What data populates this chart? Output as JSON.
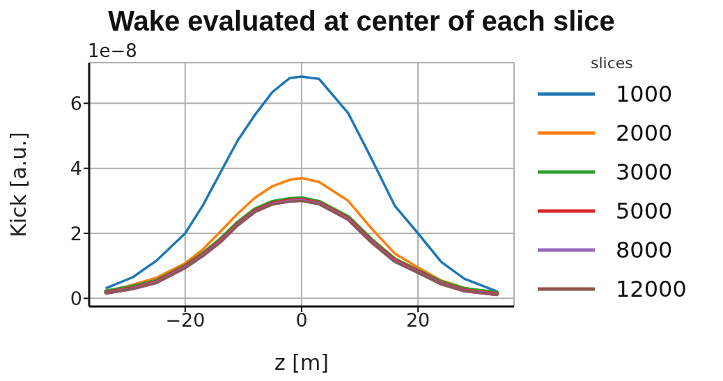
{
  "chart_data": {
    "type": "line",
    "title": "Wake evaluated at center of each slice",
    "xlabel": "z [m]",
    "ylabel": "Kick [a.u.]",
    "legend_title": "slices",
    "annotations": [
      "1e−8"
    ],
    "x": [
      -33.5,
      -29,
      -25,
      -20,
      -17,
      -14,
      -11,
      -8,
      -5,
      -2,
      0,
      3,
      8,
      12,
      16,
      20,
      24,
      28,
      33.5
    ],
    "series": [
      {
        "name": "1000",
        "color": "#1f77b4",
        "values": [
          0.32,
          0.65,
          1.15,
          2.0,
          2.85,
          3.85,
          4.85,
          5.65,
          6.35,
          6.78,
          6.82,
          6.75,
          5.7,
          4.3,
          2.85,
          2.0,
          1.12,
          0.6,
          0.22
        ]
      },
      {
        "name": "2000",
        "color": "#ff7f0e",
        "values": [
          0.2,
          0.42,
          0.63,
          1.08,
          1.5,
          2.05,
          2.6,
          3.1,
          3.45,
          3.65,
          3.7,
          3.58,
          3.0,
          2.15,
          1.38,
          0.95,
          0.55,
          0.32,
          0.16
        ]
      },
      {
        "name": "3000",
        "color": "#2ca02c",
        "values": [
          0.2,
          0.34,
          0.52,
          0.98,
          1.35,
          1.78,
          2.3,
          2.72,
          2.95,
          3.04,
          3.06,
          2.95,
          2.48,
          1.78,
          1.18,
          0.83,
          0.48,
          0.27,
          0.15
        ]
      },
      {
        "name": "5000",
        "color": "#d62728",
        "values": [
          0.18,
          0.31,
          0.5,
          0.97,
          1.33,
          1.75,
          2.27,
          2.69,
          2.92,
          3.01,
          3.03,
          2.93,
          2.45,
          1.75,
          1.16,
          0.82,
          0.46,
          0.24,
          0.13
        ]
      },
      {
        "name": "8000",
        "color": "#9467bd",
        "values": [
          0.17,
          0.3,
          0.49,
          0.95,
          1.31,
          1.73,
          2.25,
          2.67,
          2.9,
          2.99,
          3.01,
          2.91,
          2.43,
          1.73,
          1.14,
          0.8,
          0.45,
          0.23,
          0.12
        ]
      },
      {
        "name": "12000",
        "color": "#8c564b",
        "values": [
          0.17,
          0.3,
          0.48,
          0.94,
          1.3,
          1.72,
          2.24,
          2.66,
          2.89,
          2.98,
          3.0,
          2.9,
          2.42,
          1.72,
          1.13,
          0.79,
          0.44,
          0.23,
          0.12
        ]
      }
    ],
    "xlim": [
      -36.5,
      36.5
    ],
    "xticks": [
      -20,
      0,
      20
    ],
    "ylim": [
      -0.25,
      7.25
    ],
    "yticks": [
      0,
      2,
      4,
      6
    ],
    "grid": true,
    "legend": "right",
    "marker": "none",
    "line_style": "solid"
  }
}
